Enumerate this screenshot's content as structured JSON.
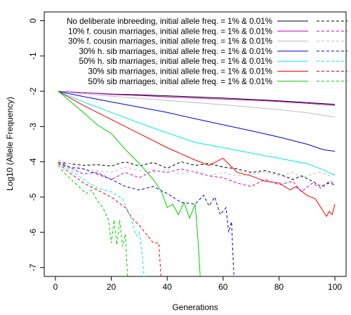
{
  "chart_data": {
    "type": "line",
    "xlabel": "Generations",
    "ylabel": "Log10 (Allele Frequency)",
    "xlim": [
      -4,
      104
    ],
    "ylim": [
      -7.25,
      0.25
    ],
    "x_ticks": [
      0,
      20,
      40,
      60,
      80,
      100
    ],
    "y_ticks": [
      0,
      -1,
      -2,
      -3,
      -4,
      -5,
      -6,
      -7
    ],
    "legend_position": "top-right",
    "series": [
      {
        "name": "No deliberate inbreeding, initial allele freq. = 1% & 0.01%",
        "color": "#000000",
        "solid": [
          [
            1,
            -2.0
          ],
          [
            10,
            -2.04
          ],
          [
            20,
            -2.08
          ],
          [
            30,
            -2.1
          ],
          [
            40,
            -2.13
          ],
          [
            50,
            -2.16
          ],
          [
            60,
            -2.19
          ],
          [
            70,
            -2.23
          ],
          [
            80,
            -2.27
          ],
          [
            90,
            -2.32
          ],
          [
            100,
            -2.37
          ]
        ],
        "dashed": [
          [
            1,
            -4.02
          ],
          [
            5,
            -4.05
          ],
          [
            10,
            -4.1
          ],
          [
            15,
            -4.08
          ],
          [
            20,
            -4.12
          ],
          [
            25,
            -4.0
          ],
          [
            30,
            -4.12
          ],
          [
            35,
            -4.02
          ],
          [
            40,
            -4.18
          ],
          [
            45,
            -4.0
          ],
          [
            50,
            -4.1
          ],
          [
            55,
            -4.05
          ],
          [
            60,
            -4.15
          ],
          [
            65,
            -4.2
          ],
          [
            70,
            -4.3
          ],
          [
            75,
            -4.25
          ],
          [
            80,
            -4.35
          ],
          [
            85,
            -4.5
          ],
          [
            88,
            -4.4
          ],
          [
            92,
            -4.55
          ],
          [
            95,
            -4.7
          ],
          [
            98,
            -4.6
          ],
          [
            100,
            -4.65
          ]
        ]
      },
      {
        "name": "10% f. cousin marriages, initial allele freq. = 1% & 0.01%",
        "color": "#cc00cc",
        "solid": [
          [
            1,
            -2.0
          ],
          [
            10,
            -2.04
          ],
          [
            20,
            -2.09
          ],
          [
            30,
            -2.12
          ],
          [
            40,
            -2.16
          ],
          [
            50,
            -2.19
          ],
          [
            60,
            -2.22
          ],
          [
            70,
            -2.25
          ],
          [
            80,
            -2.29
          ],
          [
            90,
            -2.34
          ],
          [
            100,
            -2.4
          ]
        ],
        "dashed": [
          [
            1,
            -4.0
          ],
          [
            5,
            -4.15
          ],
          [
            10,
            -4.35
          ],
          [
            15,
            -4.3
          ],
          [
            20,
            -4.5
          ],
          [
            25,
            -4.3
          ],
          [
            30,
            -4.45
          ],
          [
            35,
            -4.25
          ],
          [
            40,
            -4.3
          ],
          [
            45,
            -4.2
          ],
          [
            50,
            -4.3
          ],
          [
            55,
            -4.4
          ],
          [
            60,
            -4.45
          ],
          [
            65,
            -4.6
          ],
          [
            70,
            -4.7
          ],
          [
            75,
            -4.5
          ],
          [
            80,
            -4.65
          ],
          [
            85,
            -4.55
          ],
          [
            88,
            -4.85
          ],
          [
            92,
            -4.6
          ],
          [
            95,
            -4.75
          ],
          [
            98,
            -4.55
          ],
          [
            100,
            -4.6
          ]
        ]
      },
      {
        "name": "30% f. cousin marriages, initial allele freq. = 1% & 0.01%",
        "color": "#bebebe",
        "solid": [
          [
            1,
            -2.0
          ],
          [
            10,
            -2.07
          ],
          [
            20,
            -2.14
          ],
          [
            30,
            -2.2
          ],
          [
            40,
            -2.26
          ],
          [
            50,
            -2.32
          ],
          [
            60,
            -2.38
          ],
          [
            70,
            -2.45
          ],
          [
            80,
            -2.52
          ],
          [
            90,
            -2.61
          ],
          [
            100,
            -2.73
          ]
        ],
        "dashed": [
          [
            1,
            -3.95
          ],
          [
            5,
            -4.05
          ],
          [
            10,
            -4.2
          ],
          [
            15,
            -4.25
          ],
          [
            20,
            -4.3
          ],
          [
            25,
            -4.15
          ],
          [
            30,
            -4.25
          ],
          [
            35,
            -4.3
          ],
          [
            40,
            -4.2
          ],
          [
            45,
            -4.35
          ],
          [
            50,
            -4.25
          ],
          [
            55,
            -4.4
          ],
          [
            60,
            -4.3
          ],
          [
            65,
            -4.4
          ],
          [
            70,
            -4.35
          ],
          [
            75,
            -4.3
          ],
          [
            80,
            -4.4
          ],
          [
            85,
            -4.3
          ],
          [
            88,
            -4.45
          ],
          [
            92,
            -4.35
          ],
          [
            95,
            -4.3
          ],
          [
            98,
            -4.4
          ],
          [
            100,
            -4.35
          ]
        ]
      },
      {
        "name": "30% h. sib marriages, initial allele freq. = 1% & 0.01%",
        "color": "#0000cc",
        "solid": [
          [
            1,
            -2.0
          ],
          [
            10,
            -2.15
          ],
          [
            20,
            -2.3
          ],
          [
            30,
            -2.45
          ],
          [
            40,
            -2.6
          ],
          [
            50,
            -2.78
          ],
          [
            60,
            -2.95
          ],
          [
            70,
            -3.12
          ],
          [
            80,
            -3.3
          ],
          [
            90,
            -3.5
          ],
          [
            96,
            -3.66
          ],
          [
            100,
            -3.7
          ]
        ],
        "dashed": [
          [
            1,
            -4.05
          ],
          [
            5,
            -4.15
          ],
          [
            10,
            -4.2
          ],
          [
            15,
            -4.35
          ],
          [
            20,
            -4.5
          ],
          [
            25,
            -4.7
          ],
          [
            30,
            -4.8
          ],
          [
            35,
            -4.7
          ],
          [
            40,
            -4.9
          ],
          [
            45,
            -5.15
          ],
          [
            50,
            -5.2
          ],
          [
            53,
            -4.95
          ],
          [
            55,
            -5.25
          ],
          [
            57,
            -5.0
          ],
          [
            59,
            -5.5
          ],
          [
            61,
            -5.3
          ],
          [
            62,
            -6.0
          ],
          [
            63,
            -5.7
          ],
          [
            64,
            -7.5
          ]
        ]
      },
      {
        "name": "50% h. sib marriages, initial allele freq. = 1% & 0.01%",
        "color": "#00e5ee",
        "solid": [
          [
            1,
            -2.0
          ],
          [
            10,
            -2.3
          ],
          [
            20,
            -2.6
          ],
          [
            30,
            -2.9
          ],
          [
            40,
            -3.18
          ],
          [
            50,
            -3.45
          ],
          [
            60,
            -3.6
          ],
          [
            70,
            -3.75
          ],
          [
            80,
            -3.9
          ],
          [
            90,
            -4.05
          ],
          [
            95,
            -4.2
          ],
          [
            100,
            -4.38
          ]
        ],
        "dashed": [
          [
            1,
            -4.05
          ],
          [
            5,
            -4.2
          ],
          [
            10,
            -4.5
          ],
          [
            15,
            -4.75
          ],
          [
            20,
            -4.85
          ],
          [
            24,
            -5.05
          ],
          [
            27,
            -5.6
          ],
          [
            29,
            -6.1
          ],
          [
            30,
            -6.0
          ],
          [
            31,
            -6.6
          ],
          [
            32,
            -7.5
          ]
        ]
      },
      {
        "name": "30% sib marriages, initial allele freq. = 1% & 0.01%",
        "color": "#ee0000",
        "solid": [
          [
            1,
            -2.0
          ],
          [
            10,
            -2.4
          ],
          [
            20,
            -2.8
          ],
          [
            30,
            -3.2
          ],
          [
            40,
            -3.6
          ],
          [
            50,
            -3.95
          ],
          [
            55,
            -4.1
          ],
          [
            60,
            -3.9
          ],
          [
            65,
            -4.3
          ],
          [
            70,
            -4.4
          ],
          [
            75,
            -4.55
          ],
          [
            80,
            -4.6
          ],
          [
            84,
            -4.8
          ],
          [
            86,
            -4.7
          ],
          [
            90,
            -4.95
          ],
          [
            93,
            -5.05
          ],
          [
            95,
            -5.3
          ],
          [
            97,
            -5.55
          ],
          [
            98,
            -5.4
          ],
          [
            99,
            -5.5
          ],
          [
            100,
            -5.2
          ]
        ],
        "dashed": [
          [
            1,
            -4.05
          ],
          [
            5,
            -4.3
          ],
          [
            10,
            -4.6
          ],
          [
            15,
            -4.8
          ],
          [
            20,
            -5.0
          ],
          [
            25,
            -5.3
          ],
          [
            28,
            -5.65
          ],
          [
            30,
            -5.8
          ],
          [
            32,
            -6.0
          ],
          [
            35,
            -6.3
          ],
          [
            37,
            -6.3
          ],
          [
            38,
            -7.5
          ]
        ]
      },
      {
        "name": "50% sib marriages, initial allele freq. = 1% & 0.01%",
        "color": "#00cc00",
        "solid": [
          [
            1,
            -2.0
          ],
          [
            10,
            -2.6
          ],
          [
            15,
            -2.95
          ],
          [
            20,
            -3.2
          ],
          [
            25,
            -3.65
          ],
          [
            30,
            -4.05
          ],
          [
            35,
            -4.5
          ],
          [
            38,
            -4.85
          ],
          [
            40,
            -5.3
          ],
          [
            42,
            -5.2
          ],
          [
            44,
            -5.5
          ],
          [
            46,
            -5.15
          ],
          [
            48,
            -5.6
          ],
          [
            50,
            -5.2
          ],
          [
            51,
            -6.2
          ],
          [
            52,
            -7.5
          ]
        ],
        "dashed": [
          [
            1,
            -4.1
          ],
          [
            3,
            -4.3
          ],
          [
            5,
            -4.45
          ],
          [
            7,
            -4.6
          ],
          [
            9,
            -4.75
          ],
          [
            11,
            -4.9
          ],
          [
            13,
            -4.8
          ],
          [
            15,
            -5.1
          ],
          [
            17,
            -5.3
          ],
          [
            19,
            -5.65
          ],
          [
            20,
            -6.3
          ],
          [
            21,
            -5.65
          ],
          [
            22,
            -6.35
          ],
          [
            23,
            -5.65
          ],
          [
            24,
            -6.4
          ],
          [
            25,
            -6.05
          ],
          [
            26,
            -7.5
          ]
        ]
      }
    ]
  }
}
